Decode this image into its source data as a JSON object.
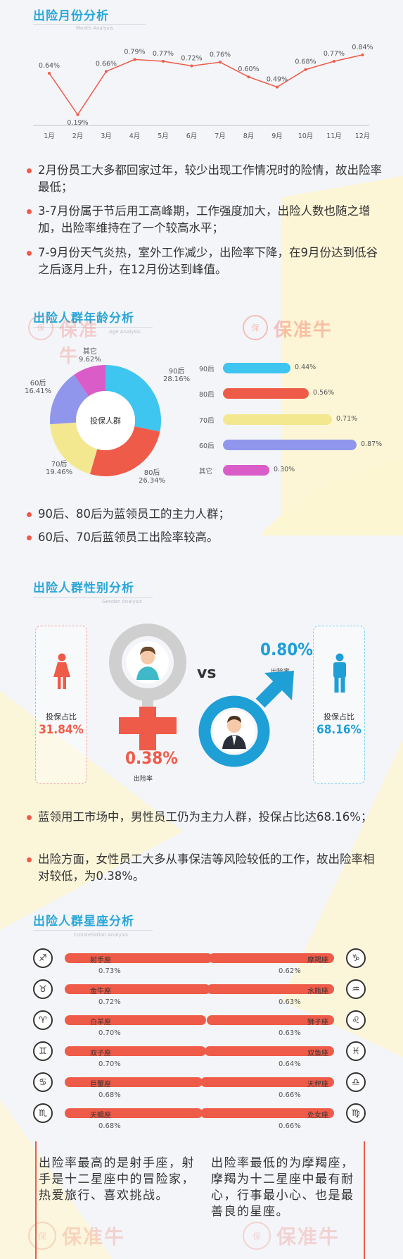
{
  "brand_watermark": "保准牛",
  "month_section": {
    "title": "出险月份分析",
    "subtitle": "Month Analysis",
    "chart_data": {
      "type": "line",
      "categories": [
        "1月",
        "2月",
        "3月",
        "4月",
        "5月",
        "6月",
        "7月",
        "8月",
        "9月",
        "10月",
        "11月",
        "12月"
      ],
      "values": [
        0.64,
        0.19,
        0.66,
        0.79,
        0.77,
        0.72,
        0.76,
        0.6,
        0.49,
        0.68,
        0.77,
        0.84
      ],
      "value_labels": [
        "0.64%",
        "0.19%",
        "0.66%",
        "0.79%",
        "0.77%",
        "0.72%",
        "0.76%",
        "0.60%",
        "0.49%",
        "0.68%",
        "0.77%",
        "0.84%"
      ],
      "ylim": [
        0,
        0.9
      ],
      "line_color": "#ef5b49"
    },
    "bullets": [
      "2月份员工大多都回家过年，较少出现工作情况时的险情，故出险率最低；",
      "3-7月份属于节后用工高峰期，工作强度加大，出险人数也随之增加，出险率维持在了一个较高水平；",
      "7-9月份天气炎热，室外工作减少，出险率下降，在9月份达到低谷之后逐月上升，在12月份达到峰值。"
    ]
  },
  "age_section": {
    "title": "出险人群年龄分析",
    "subtitle": "Age Analysis",
    "chart_data": [
      {
        "type": "pie",
        "center_label": "投保人群",
        "categories": [
          "90后",
          "80后",
          "70后",
          "60后",
          "其它"
        ],
        "values": [
          28.16,
          26.34,
          19.46,
          16.41,
          9.62
        ],
        "value_labels": [
          "28.16%",
          "26.34%",
          "19.46%",
          "16.41%",
          "9.62%"
        ],
        "colors": [
          "#3ec5f0",
          "#ef5b49",
          "#f3e88f",
          "#8f96ec",
          "#d95cc9"
        ]
      },
      {
        "type": "bar",
        "orientation": "horizontal",
        "categories": [
          "90后",
          "80后",
          "70后",
          "60后",
          "其它"
        ],
        "values": [
          0.44,
          0.56,
          0.71,
          0.87,
          0.3
        ],
        "value_labels": [
          "0.44%",
          "0.56%",
          "0.71%",
          "0.87%",
          "0.30%"
        ],
        "colors": [
          "#3ec5f0",
          "#ef5b49",
          "#f3e88f",
          "#8f96ec",
          "#d95cc9"
        ]
      }
    ],
    "bullets": [
      "90后、80后为蓝领员工的主力人群；",
      "60后、70后蓝领员工出险率较高。"
    ]
  },
  "gender_section": {
    "title": "出险人群性别分析",
    "subtitle": "Gender Analysis",
    "female": {
      "share_label": "投保占比",
      "share": "31.84%",
      "claim_rate": "0.38%",
      "claim_label": "出险率",
      "color": "#ef5b49"
    },
    "male": {
      "share_label": "投保占比",
      "share": "68.16%",
      "claim_rate": "0.80%",
      "claim_label": "出险率",
      "color": "#1e9fd6"
    },
    "vs": "vs",
    "bullets": [
      "蓝领用工市场中，男性员工仍为主力人群，投保占比达68.16%；",
      "出险方面，女性员工大多从事保洁等风险较低的工作，故出险率相对较低，为0.38%。"
    ]
  },
  "zodiac_section": {
    "title": "出险人群星座分析",
    "subtitle": "Constellation Analysis",
    "chart_data": {
      "type": "bar",
      "orientation": "horizontal",
      "categories": [
        "射手座",
        "金牛座",
        "白羊座",
        "双子座",
        "巨蟹座",
        "天蝎座",
        "摩羯座",
        "水瓶座",
        "狮子座",
        "双鱼座",
        "天秤座",
        "处女座"
      ],
      "values": [
        0.73,
        0.72,
        0.7,
        0.7,
        0.68,
        0.68,
        0.62,
        0.63,
        0.63,
        0.64,
        0.66,
        0.66
      ],
      "value_labels": [
        "0.73%",
        "0.72%",
        "0.70%",
        "0.70%",
        "0.68%",
        "0.68%",
        "0.62%",
        "0.63%",
        "0.63%",
        "0.64%",
        "0.66%",
        "0.66%"
      ],
      "bar_color": "#ef5b49"
    },
    "icons": [
      "sagittarius-icon",
      "taurus-icon",
      "aries-icon",
      "gemini-icon",
      "cancer-icon",
      "scorpio-icon",
      "capricorn-icon",
      "aquarius-icon",
      "leo-icon",
      "pisces-icon",
      "libra-icon",
      "virgo-icon"
    ],
    "summary_left": "出险率最高的是射手座，射手是十二星座中的冒险家，热爱旅行、喜欢挑战。",
    "summary_right": "出险率最低的为摩羯座，摩羯为十二星座中最有耐心，行事最小心、也是最善良的星座。"
  }
}
